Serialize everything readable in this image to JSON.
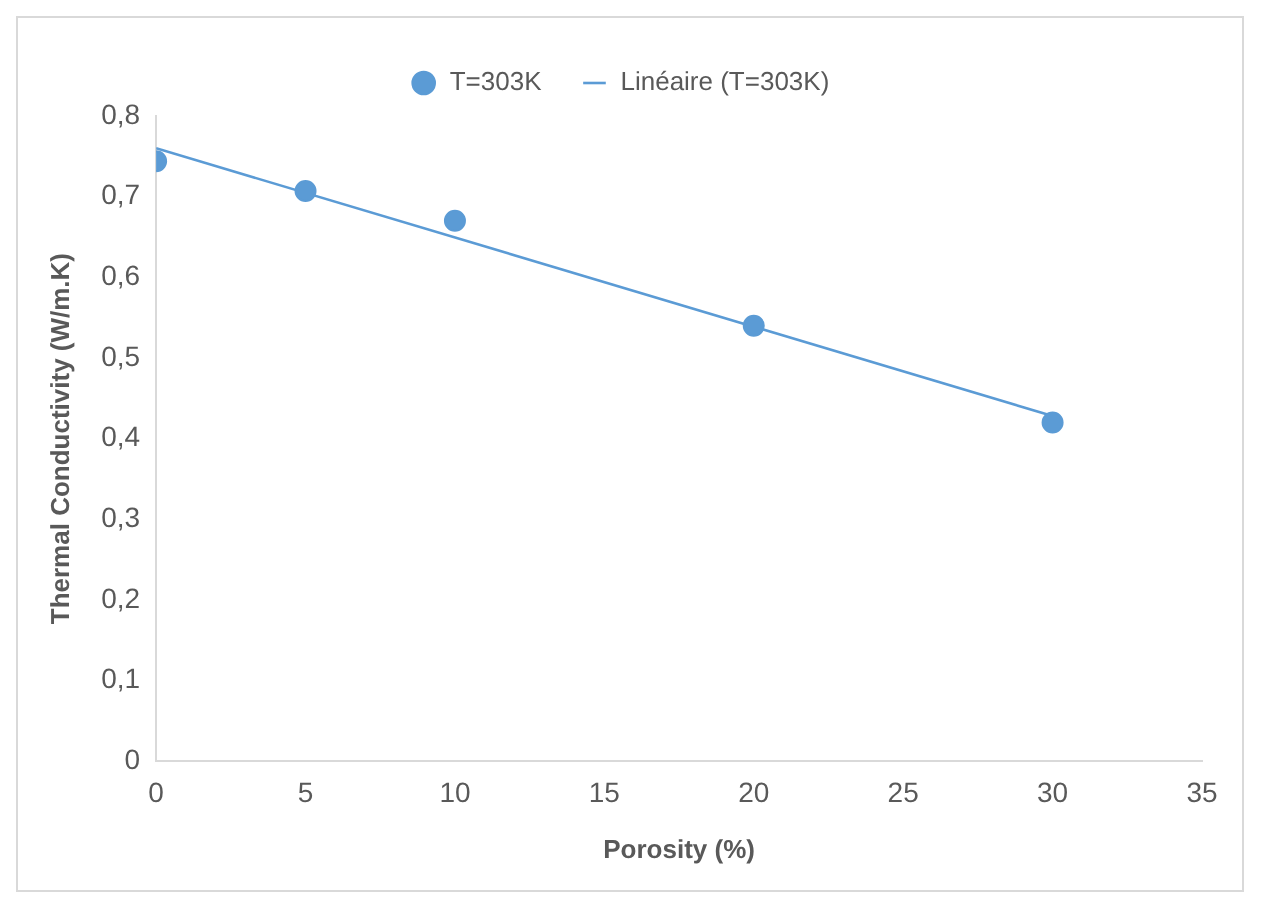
{
  "chart_data": {
    "type": "scatter",
    "xlabel": "Porosity (%)",
    "ylabel": "Thermal Conductivity (W/m.K)",
    "xlim": [
      0,
      35
    ],
    "xticks": [
      0,
      5,
      10,
      15,
      20,
      25,
      30,
      35
    ],
    "ylim": [
      0,
      0.8
    ],
    "yticks": [
      0,
      {
        "value": 0.1,
        "label": "0,1"
      },
      {
        "value": 0.2,
        "label": "0,2"
      },
      {
        "value": 0.3,
        "label": "0,3"
      },
      {
        "value": 0.4,
        "label": "0,4"
      },
      {
        "value": 0.5,
        "label": "0,5"
      },
      {
        "value": 0.6,
        "label": "0,6"
      },
      {
        "value": 0.7,
        "label": "0,7"
      },
      {
        "value": 0.8,
        "label": "0,8"
      }
    ],
    "grid": false,
    "legend": "top",
    "series": [
      {
        "name": "T=303K",
        "color": "#5b9bd5",
        "marker": "circle",
        "x": [
          0,
          5,
          10,
          20,
          30
        ],
        "values": [
          0.744,
          0.707,
          0.67,
          0.54,
          0.42
        ]
      },
      {
        "name": "Linéaire (T=303K)",
        "type": "line",
        "color": "#5b9bd5",
        "marker": "none",
        "line_style": "solid",
        "x": [
          0,
          30
        ],
        "values": [
          0.76,
          0.428
        ]
      }
    ]
  }
}
